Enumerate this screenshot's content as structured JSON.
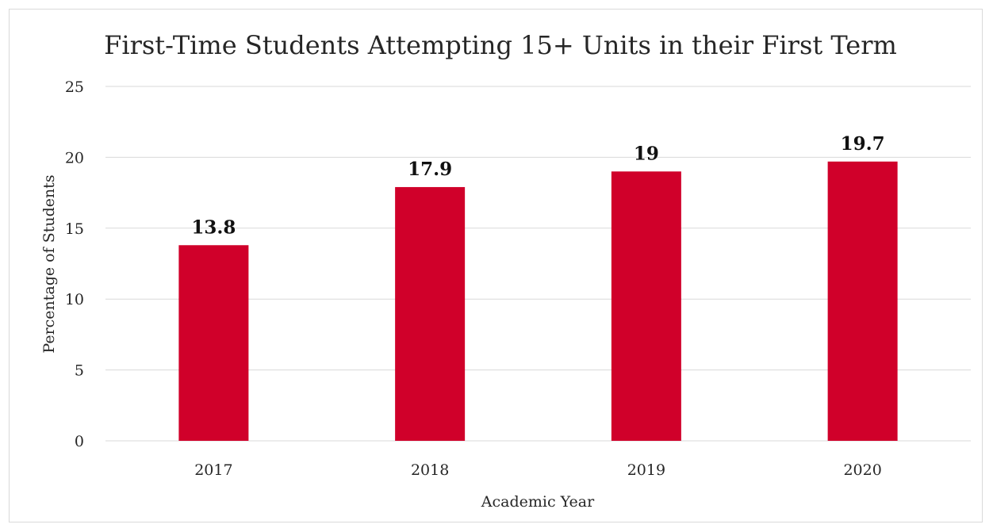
{
  "chart_data": {
    "type": "bar",
    "title": "First-Time Students Attempting 15+ Units in their First Term",
    "xlabel": "Academic Year",
    "ylabel": "Percentage of Students",
    "categories": [
      "2017",
      "2018",
      "2019",
      "2020"
    ],
    "values": [
      13.8,
      17.9,
      19,
      19.7
    ],
    "data_labels": [
      "13.8",
      "17.9",
      "19",
      "19.7"
    ],
    "ylim": [
      0,
      25
    ],
    "yticks": [
      0,
      5,
      10,
      15,
      20,
      25
    ],
    "grid": true,
    "legend": "none",
    "bar_color": "#d0002a"
  }
}
